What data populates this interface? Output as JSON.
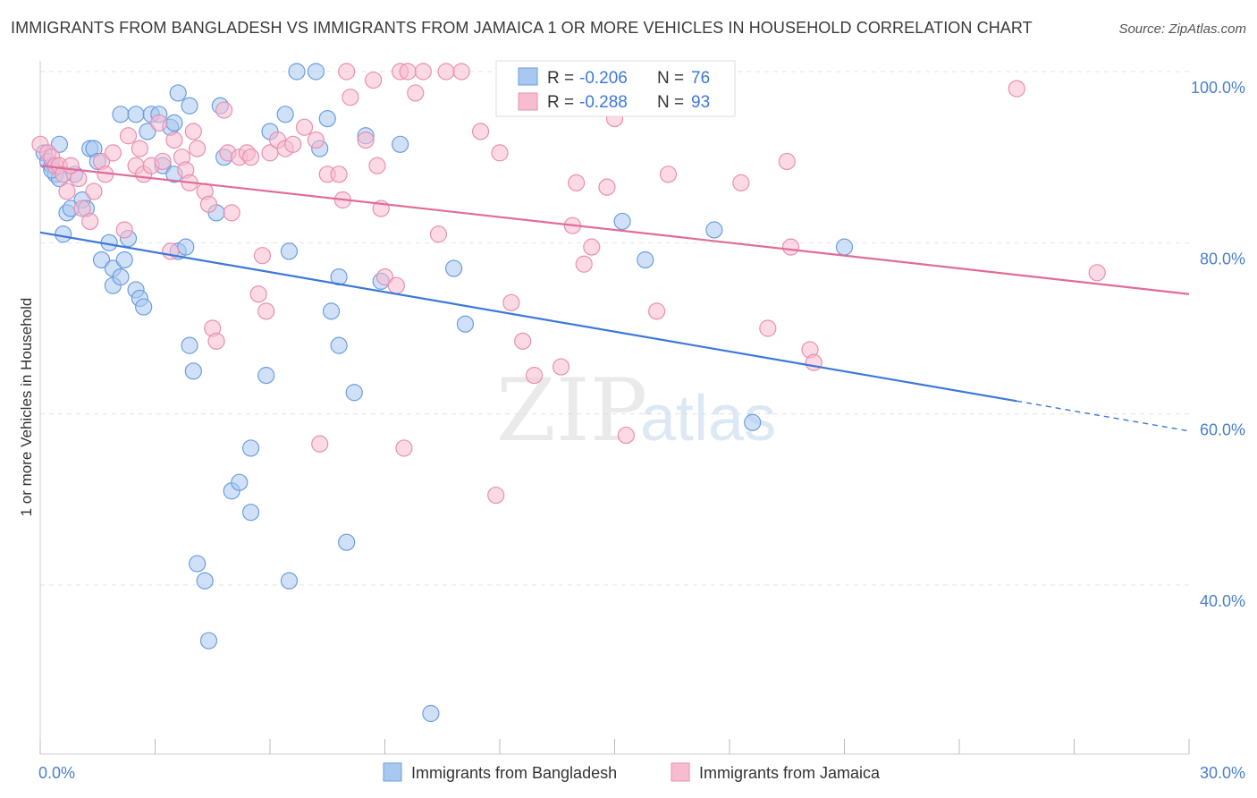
{
  "header": {
    "title": "IMMIGRANTS FROM BANGLADESH VS IMMIGRANTS FROM JAMAICA 1 OR MORE VEHICLES IN HOUSEHOLD CORRELATION CHART",
    "source": "Source: ZipAtlas.com"
  },
  "watermark": {
    "zip": "ZIP",
    "atlas": "atlas"
  },
  "chart_data": {
    "type": "scatter",
    "xlabel": "",
    "ylabel": "1 or more Vehicles in Household",
    "xlim": [
      0,
      30
    ],
    "ylim": [
      22,
      102
    ],
    "x_tick_labels": [
      {
        "value": 0,
        "label": "0.0%"
      },
      {
        "value": 30,
        "label": "30.0%"
      }
    ],
    "x_minor_ticks": [
      0,
      3,
      6,
      9,
      12,
      15,
      18,
      21,
      24,
      27,
      30
    ],
    "y_ticks": [
      {
        "value": 100,
        "label": "100.0%"
      },
      {
        "value": 80,
        "label": "80.0%"
      },
      {
        "value": 60,
        "label": "60.0%"
      },
      {
        "value": 40,
        "label": "40.0%"
      }
    ],
    "grid": true,
    "legend_position": "bottom",
    "series": [
      {
        "name": "Immigrants from Bangladesh",
        "color": "#a9c8f0",
        "stroke": "#6a9ee0",
        "trend_color": "#3c78d8",
        "r_label": "R = ",
        "r_value": "-0.206",
        "n_label": "N = ",
        "n_value": "76",
        "trend": {
          "x0": 0,
          "y0": 81.2,
          "x1": 25.5,
          "y1": 61.5,
          "dash_to_x": 30,
          "dash_to_y": 58.0
        },
        "points": [
          [
            0.1,
            90.5
          ],
          [
            0.2,
            89.5
          ],
          [
            0.3,
            89
          ],
          [
            0.4,
            88
          ],
          [
            0.5,
            87.5
          ],
          [
            0.5,
            91.5
          ],
          [
            0.6,
            81
          ],
          [
            0.7,
            83.5
          ],
          [
            0.8,
            84
          ],
          [
            1.1,
            85
          ],
          [
            1.3,
            91
          ],
          [
            1.4,
            91
          ],
          [
            1.5,
            89.5
          ],
          [
            1.6,
            78
          ],
          [
            1.8,
            80
          ],
          [
            1.9,
            77
          ],
          [
            1.9,
            75
          ],
          [
            2.1,
            76
          ],
          [
            2.2,
            78
          ],
          [
            2.3,
            80.5
          ],
          [
            2.5,
            74.5
          ],
          [
            2.6,
            73.5
          ],
          [
            2.7,
            72.5
          ],
          [
            2.1,
            95
          ],
          [
            2.5,
            95
          ],
          [
            2.9,
            95
          ],
          [
            3.1,
            95
          ],
          [
            3.4,
            93.5
          ],
          [
            3.2,
            89
          ],
          [
            3.5,
            88
          ],
          [
            3.6,
            79
          ],
          [
            3.8,
            79.5
          ],
          [
            3.9,
            68
          ],
          [
            4.0,
            65
          ],
          [
            3.6,
            97.5
          ],
          [
            3.9,
            96
          ],
          [
            4.7,
            96
          ],
          [
            4.8,
            90
          ],
          [
            4.6,
            83.5
          ],
          [
            4.1,
            42.5
          ],
          [
            4.3,
            40.5
          ],
          [
            4.4,
            33.5
          ],
          [
            5.0,
            51
          ],
          [
            5.2,
            52
          ],
          [
            5.5,
            56
          ],
          [
            5.5,
            48.5
          ],
          [
            5.9,
            64.5
          ],
          [
            6.0,
            93
          ],
          [
            6.4,
            95
          ],
          [
            6.5,
            79
          ],
          [
            6.5,
            40.5
          ],
          [
            6.7,
            100
          ],
          [
            7.2,
            100
          ],
          [
            7.3,
            91
          ],
          [
            7.5,
            94.5
          ],
          [
            7.6,
            72
          ],
          [
            7.8,
            68
          ],
          [
            7.8,
            76
          ],
          [
            8.0,
            45
          ],
          [
            8.2,
            62.5
          ],
          [
            8.5,
            92.5
          ],
          [
            8.9,
            75.5
          ],
          [
            9.4,
            91.5
          ],
          [
            10.2,
            25
          ],
          [
            10.8,
            77
          ],
          [
            11.1,
            70.5
          ],
          [
            15.2,
            82.5
          ],
          [
            15.8,
            78
          ],
          [
            17.6,
            81.5
          ],
          [
            18.6,
            59
          ],
          [
            21.0,
            79.5
          ],
          [
            0.3,
            88.5
          ],
          [
            0.9,
            88
          ],
          [
            1.2,
            84
          ],
          [
            2.8,
            93
          ],
          [
            3.5,
            94
          ]
        ]
      },
      {
        "name": "Immigrants from Jamaica",
        "color": "#f7bccf",
        "stroke": "#e98fb0",
        "trend_color": "#e06c98",
        "r_label": "R = ",
        "r_value": "-0.288",
        "n_label": "N = ",
        "n_value": "93",
        "trend": {
          "x0": 0,
          "y0": 89.0,
          "x1": 30,
          "y1": 74.0
        },
        "points": [
          [
            0.0,
            91.5
          ],
          [
            0.2,
            90.5
          ],
          [
            0.3,
            90
          ],
          [
            0.4,
            89
          ],
          [
            0.5,
            89
          ],
          [
            0.6,
            88
          ],
          [
            0.7,
            86
          ],
          [
            0.8,
            89
          ],
          [
            1.0,
            87.5
          ],
          [
            1.1,
            84
          ],
          [
            1.3,
            82.5
          ],
          [
            1.4,
            86
          ],
          [
            1.6,
            89.5
          ],
          [
            1.7,
            88
          ],
          [
            1.9,
            90.5
          ],
          [
            2.2,
            81.5
          ],
          [
            2.3,
            92.5
          ],
          [
            2.5,
            89
          ],
          [
            2.6,
            91
          ],
          [
            2.7,
            88
          ],
          [
            2.9,
            89
          ],
          [
            3.1,
            94
          ],
          [
            3.2,
            89.5
          ],
          [
            3.4,
            79
          ],
          [
            3.5,
            92
          ],
          [
            3.7,
            90
          ],
          [
            3.8,
            88.5
          ],
          [
            3.9,
            87
          ],
          [
            4.0,
            93
          ],
          [
            4.1,
            91
          ],
          [
            4.3,
            86
          ],
          [
            4.4,
            84.5
          ],
          [
            4.5,
            70
          ],
          [
            4.6,
            68.5
          ],
          [
            4.8,
            95.5
          ],
          [
            4.9,
            90.5
          ],
          [
            5.0,
            83.5
          ],
          [
            5.2,
            90
          ],
          [
            5.4,
            90.5
          ],
          [
            5.5,
            90
          ],
          [
            5.7,
            74
          ],
          [
            5.9,
            72
          ],
          [
            5.8,
            78.5
          ],
          [
            6.0,
            90.5
          ],
          [
            6.2,
            92
          ],
          [
            6.4,
            91
          ],
          [
            6.6,
            91.5
          ],
          [
            6.9,
            93.5
          ],
          [
            7.2,
            92
          ],
          [
            7.3,
            56.5
          ],
          [
            7.5,
            88
          ],
          [
            7.8,
            88
          ],
          [
            7.9,
            85
          ],
          [
            8.0,
            100
          ],
          [
            8.1,
            97
          ],
          [
            8.5,
            92
          ],
          [
            8.7,
            99
          ],
          [
            8.8,
            89
          ],
          [
            8.9,
            84
          ],
          [
            9.0,
            76
          ],
          [
            9.3,
            75
          ],
          [
            9.5,
            56
          ],
          [
            9.4,
            100
          ],
          [
            9.6,
            100
          ],
          [
            9.8,
            97.5
          ],
          [
            10.0,
            100
          ],
          [
            10.4,
            81
          ],
          [
            10.6,
            100
          ],
          [
            11.0,
            100
          ],
          [
            11.5,
            93
          ],
          [
            12.0,
            90.5
          ],
          [
            12.3,
            73
          ],
          [
            12.6,
            68.5
          ],
          [
            12.9,
            64.5
          ],
          [
            13.6,
            65.5
          ],
          [
            14.0,
            87
          ],
          [
            14.2,
            77.5
          ],
          [
            14.4,
            79.5
          ],
          [
            14.8,
            86.5
          ],
          [
            15.0,
            94.5
          ],
          [
            15.3,
            57.5
          ],
          [
            16.1,
            72
          ],
          [
            16.4,
            88
          ],
          [
            18.3,
            87
          ],
          [
            19.0,
            70
          ],
          [
            19.5,
            89.5
          ],
          [
            19.6,
            79.5
          ],
          [
            20.1,
            67.5
          ],
          [
            20.2,
            66
          ],
          [
            25.5,
            98
          ],
          [
            27.6,
            76.5
          ],
          [
            13.9,
            82
          ],
          [
            11.9,
            50.5
          ]
        ]
      }
    ]
  }
}
